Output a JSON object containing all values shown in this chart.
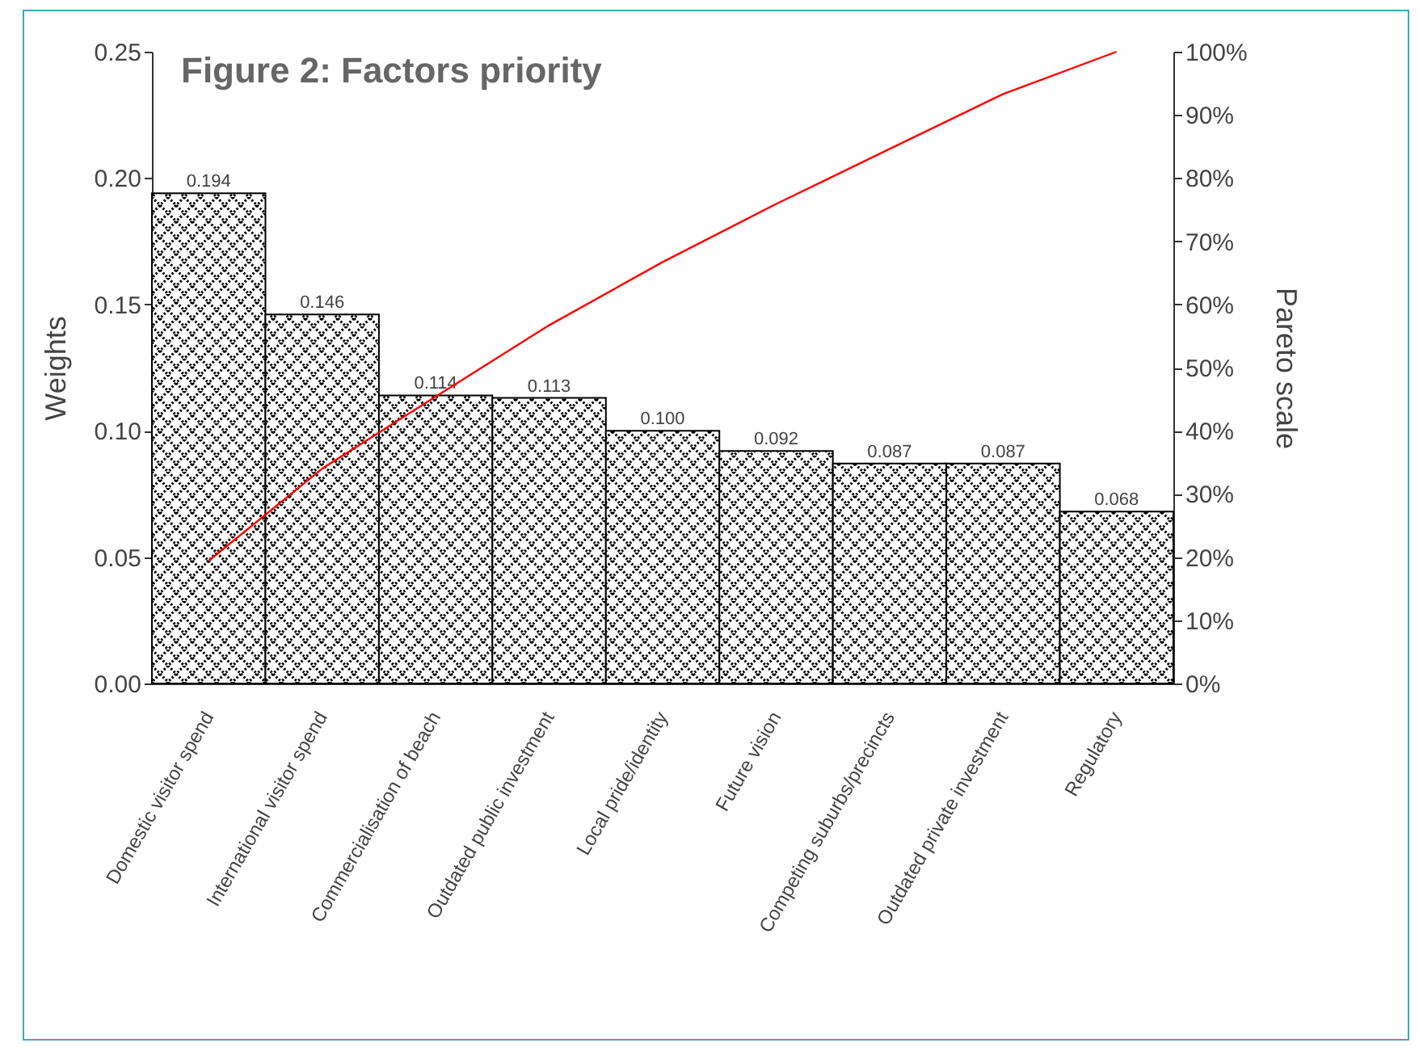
{
  "chart_data": {
    "type": "bar",
    "title": "Figure 2: Factors priority",
    "ylabel": "Weights",
    "y2label": "Pareto scale",
    "categories": [
      "Domestic visitor spend",
      "International visitor spend",
      "Commercialisation of beach",
      "Outdated public investment",
      "Local pride/identity",
      "Future vision",
      "Competing suburbs/precincts",
      "Outdated private investment",
      "Regulatory"
    ],
    "series": [
      {
        "color": "#000000",
        "values": [
          0.194,
          0.146,
          0.114,
          0.113,
          0.1,
          0.092,
          0.087,
          0.087,
          0.068
        ],
        "value_labels": [
          "0.194",
          "0.146",
          "0.114",
          "0.113",
          "0.100",
          "0.092",
          "0.087",
          "0.087",
          "0.068"
        ]
      },
      {
        "type": "line",
        "axis": "y2",
        "color": "#ff0000",
        "values": [
          19.4,
          34.0,
          45.4,
          56.7,
          66.7,
          75.9,
          84.6,
          93.3,
          100
        ]
      }
    ],
    "ylim": [
      0,
      0.25
    ],
    "yticks": [
      {
        "value": 0,
        "label": "0.00"
      },
      {
        "value": 0.05,
        "label": "0.05"
      },
      {
        "value": 0.1,
        "label": "0.10"
      },
      {
        "value": 0.15,
        "label": "0.15"
      },
      {
        "value": 0.2,
        "label": "0.20"
      },
      {
        "value": 0.25,
        "label": "0.25"
      }
    ],
    "y2lim": [
      0,
      100
    ],
    "y2ticks": [
      {
        "value": 0,
        "label": "0%"
      },
      {
        "value": 10,
        "label": "10%"
      },
      {
        "value": 20,
        "label": "20%"
      },
      {
        "value": 30,
        "label": "30%"
      },
      {
        "value": 40,
        "label": "40%"
      },
      {
        "value": 50,
        "label": "50%"
      },
      {
        "value": 60,
        "label": "60%"
      },
      {
        "value": 70,
        "label": "70%"
      },
      {
        "value": 80,
        "label": "80%"
      },
      {
        "value": 90,
        "label": "90%"
      },
      {
        "value": 100,
        "label": "100%"
      }
    ],
    "grid": false
  }
}
